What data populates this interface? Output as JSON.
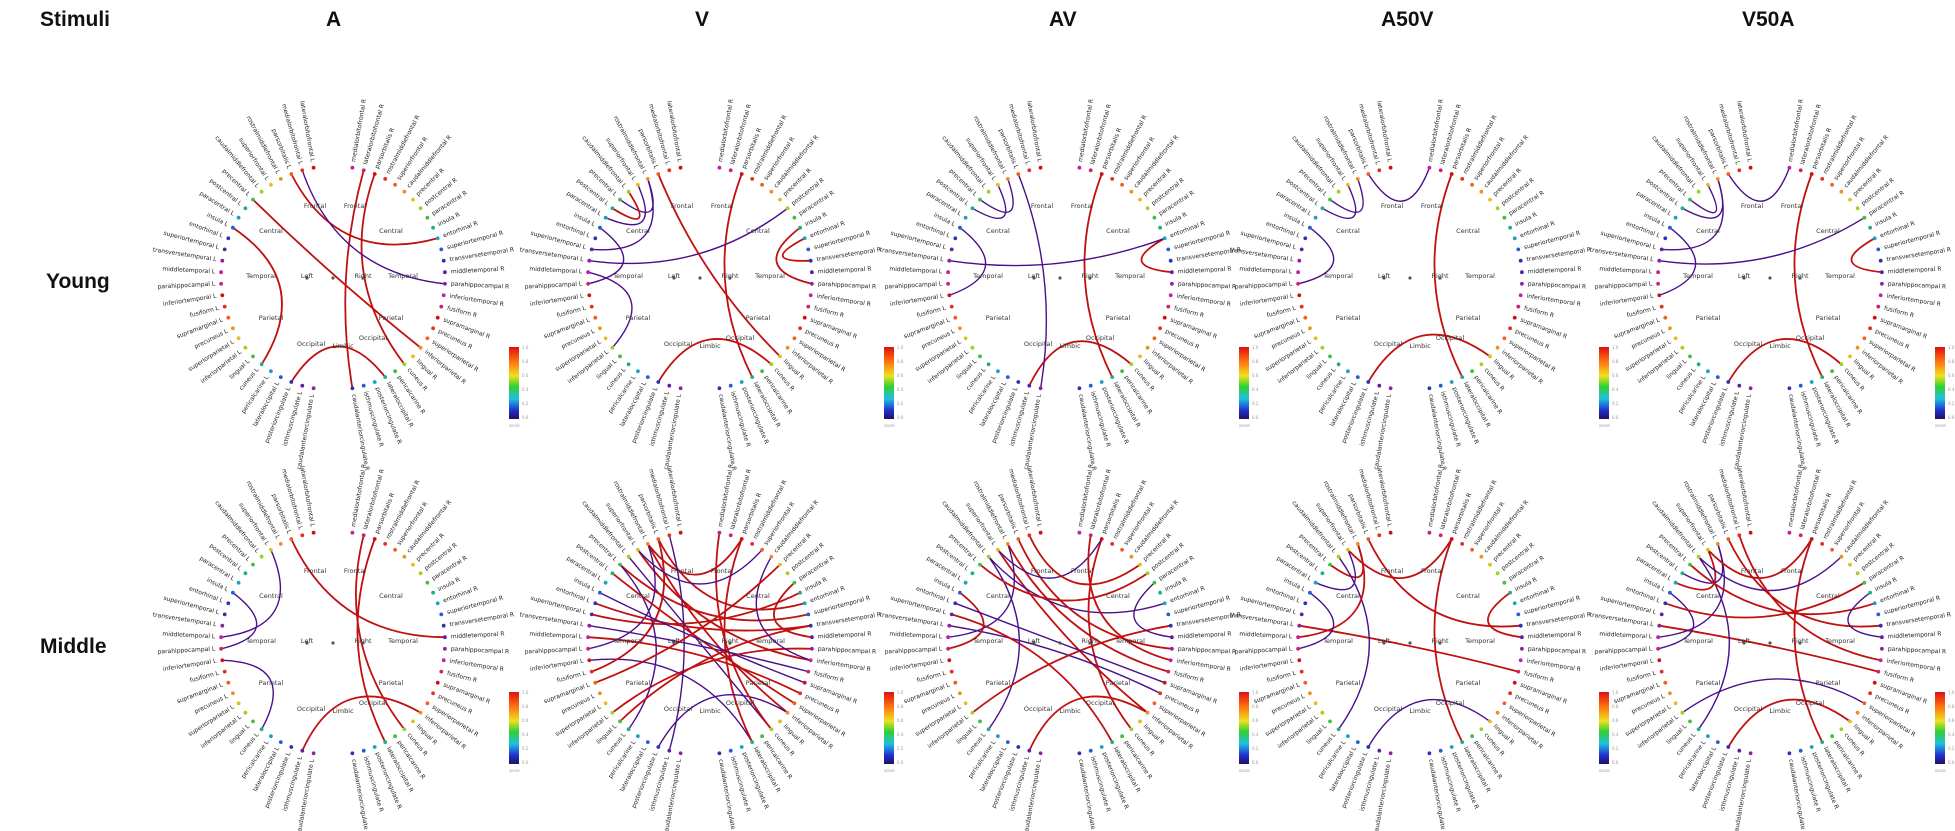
{
  "header": {
    "corner": "Stimuli",
    "columns": [
      "A",
      "V",
      "AV",
      "A50V",
      "V50A"
    ]
  },
  "rows": [
    "Young",
    "Middle"
  ],
  "colors": {
    "strong": "#c01010",
    "weak": "#4a0f8a",
    "text": "#222222"
  },
  "nodes_left": [
    "lateralorbitofrontal L",
    "medialorbitofrontal L",
    "parsorbitalis L",
    "rostralmiddlefrontal L",
    "superiorfrontal L",
    "caudalmiddlefrontal L",
    "precentral L",
    "postcentral L",
    "paracentral L",
    "insula L",
    "entorhinal L",
    "superiortemporal L",
    "transversetemporal L",
    "middletemporal L",
    "parahippocampal L",
    "inferiortemporal L",
    "fusiform L",
    "supramarginal L",
    "precuneus L",
    "superiorparietal L",
    "inferiorparietal L",
    "lingual L",
    "cuneus L",
    "pericalcarine L",
    "lateraloccipital L",
    "posteriorcingulate L",
    "isthmuscingulate L",
    "caudalanteriorcingulate L"
  ],
  "nodes_right": [
    "medialorbitofrontal R",
    "lateralorbitofrontal R",
    "parsorbitalis R",
    "rostralmiddlefrontal R",
    "superiorfrontal R",
    "caudalmiddlefrontal R",
    "precentral R",
    "postcentral R",
    "paracentral R",
    "insula R",
    "entorhinal R",
    "superiortemporal R",
    "transversetemporal R",
    "middletemporal R",
    "parahippocampal R",
    "inferiortemporal R",
    "fusiform R",
    "supramarginal R",
    "precuneus R",
    "superiorparietal R",
    "inferiorparietal R",
    "lingual R",
    "cuneus R",
    "pericalcarine R",
    "lateraloccipital R",
    "posteriorcingulate R",
    "isthmuscingulate R",
    "caudalanteriorcingulate R"
  ],
  "lobes": [
    "Frontal",
    "Central",
    "Temporal",
    "Parietal",
    "Occipital",
    "Limbic",
    "Left",
    "Right"
  ],
  "colorbar": {
    "ticks": [
      "1.0",
      "0.8",
      "0.6",
      "0.4",
      "0.2",
      "0.0"
    ],
    "label": "score"
  },
  "panels": [
    {
      "row": 0,
      "col": 0,
      "edges": [
        [
          6,
          48,
          1
        ],
        [
          2,
          38,
          1
        ],
        [
          25,
          52,
          1
        ],
        [
          30,
          50,
          1
        ],
        [
          29,
          55,
          1
        ],
        [
          22,
          9,
          1
        ],
        [
          1,
          42,
          0
        ]
      ]
    },
    {
      "row": 0,
      "col": 1,
      "edges": [
        [
          3,
          6,
          0
        ],
        [
          4,
          8,
          0
        ],
        [
          5,
          7,
          1
        ],
        [
          40,
          38,
          1
        ],
        [
          37,
          42,
          1
        ],
        [
          30,
          52,
          1
        ],
        [
          25,
          50,
          1
        ],
        [
          11,
          3,
          0
        ],
        [
          13,
          20,
          0
        ],
        [
          12,
          35,
          0
        ],
        [
          2,
          49,
          1
        ],
        [
          9,
          14,
          0
        ]
      ]
    },
    {
      "row": 0,
      "col": 2,
      "edges": [
        [
          3,
          6,
          0
        ],
        [
          4,
          7,
          0
        ],
        [
          41,
          38,
          1
        ],
        [
          30,
          52,
          1
        ],
        [
          26,
          50,
          1
        ],
        [
          12,
          38,
          0
        ],
        [
          2,
          27,
          0
        ],
        [
          9,
          15,
          0
        ]
      ]
    },
    {
      "row": 0,
      "col": 3,
      "edges": [
        [
          3,
          6,
          0
        ],
        [
          4,
          7,
          0
        ],
        [
          30,
          52,
          1
        ],
        [
          25,
          49,
          1
        ],
        [
          2,
          28,
          0
        ],
        [
          9,
          14,
          0
        ]
      ]
    },
    {
      "row": 0,
      "col": 4,
      "edges": [
        [
          3,
          7,
          0
        ],
        [
          4,
          6,
          0
        ],
        [
          41,
          38,
          1
        ],
        [
          30,
          52,
          1
        ],
        [
          25,
          50,
          1
        ],
        [
          12,
          36,
          0
        ],
        [
          2,
          28,
          0
        ],
        [
          11,
          3,
          0
        ],
        [
          9,
          15,
          0
        ]
      ]
    },
    {
      "row": 1,
      "col": 0,
      "edges": [
        [
          13,
          4,
          0
        ],
        [
          15,
          22,
          0
        ],
        [
          30,
          52,
          1
        ],
        [
          26,
          48,
          1
        ],
        [
          29,
          50,
          1
        ],
        [
          9,
          14,
          0
        ],
        [
          2,
          41,
          1
        ]
      ]
    },
    {
      "row": 1,
      "col": 1,
      "edges": [
        [
          4,
          43,
          1
        ],
        [
          3,
          48,
          1
        ],
        [
          5,
          50,
          0
        ],
        [
          2,
          38,
          1
        ],
        [
          6,
          39,
          1
        ],
        [
          12,
          44,
          0
        ],
        [
          11,
          37,
          1
        ],
        [
          13,
          46,
          1
        ],
        [
          14,
          3,
          0
        ],
        [
          15,
          52,
          0
        ],
        [
          10,
          40,
          1
        ],
        [
          16,
          2,
          1
        ],
        [
          30,
          52,
          1
        ],
        [
          25,
          48,
          0
        ],
        [
          28,
          50,
          1
        ],
        [
          20,
          42,
          1
        ],
        [
          22,
          6,
          0
        ],
        [
          21,
          40,
          1
        ],
        [
          4,
          32,
          0
        ],
        [
          3,
          30,
          1
        ],
        [
          1,
          26,
          0
        ],
        [
          41,
          36,
          1
        ],
        [
          43,
          33,
          0
        ],
        [
          7,
          47,
          1
        ],
        [
          9,
          45,
          0
        ],
        [
          17,
          34,
          1
        ]
      ]
    },
    {
      "row": 1,
      "col": 2,
      "edges": [
        [
          3,
          44,
          1
        ],
        [
          4,
          48,
          1
        ],
        [
          5,
          38,
          0
        ],
        [
          2,
          42,
          1
        ],
        [
          12,
          46,
          0
        ],
        [
          11,
          52,
          1
        ],
        [
          13,
          3,
          0
        ],
        [
          30,
          50,
          1
        ],
        [
          26,
          48,
          1
        ],
        [
          22,
          5,
          0
        ],
        [
          20,
          40,
          1
        ],
        [
          4,
          30,
          0
        ],
        [
          1,
          34,
          1
        ],
        [
          41,
          36,
          0
        ],
        [
          6,
          35,
          1
        ],
        [
          9,
          14,
          1
        ],
        [
          10,
          45,
          0
        ],
        [
          43,
          29,
          1
        ]
      ]
    },
    {
      "row": 1,
      "col": 3,
      "edges": [
        [
          3,
          6,
          1
        ],
        [
          4,
          8,
          0
        ],
        [
          12,
          44,
          1
        ],
        [
          2,
          40,
          1
        ],
        [
          30,
          52,
          1
        ],
        [
          25,
          49,
          0
        ],
        [
          22,
          5,
          0
        ],
        [
          13,
          3,
          1
        ],
        [
          41,
          37,
          1
        ],
        [
          9,
          14,
          0
        ],
        [
          4,
          30,
          1
        ]
      ]
    },
    {
      "row": 1,
      "col": 4,
      "edges": [
        [
          3,
          7,
          0
        ],
        [
          4,
          8,
          1
        ],
        [
          12,
          44,
          1
        ],
        [
          2,
          40,
          1
        ],
        [
          30,
          52,
          1
        ],
        [
          25,
          49,
          1
        ],
        [
          22,
          5,
          0
        ],
        [
          13,
          3,
          0
        ],
        [
          6,
          38,
          1
        ],
        [
          41,
          37,
          0
        ],
        [
          9,
          14,
          0
        ],
        [
          4,
          30,
          1
        ],
        [
          5,
          33,
          0
        ],
        [
          1,
          43,
          1
        ],
        [
          10,
          36,
          1
        ],
        [
          20,
          47,
          0
        ]
      ]
    }
  ]
}
